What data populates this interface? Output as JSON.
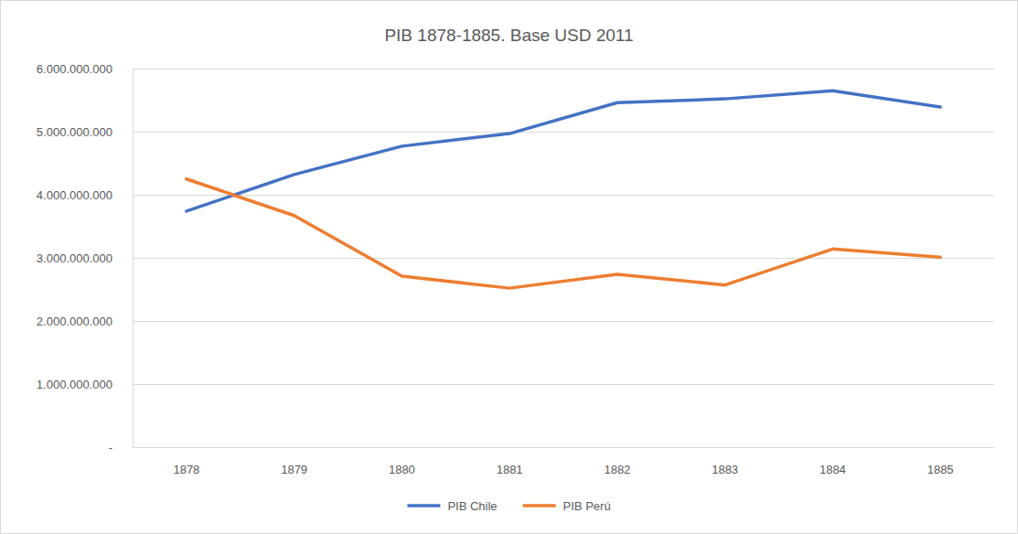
{
  "chart_data": {
    "type": "line",
    "title": "PIB 1878-1885. Base USD 2011",
    "categories": [
      "1878",
      "1879",
      "1880",
      "1881",
      "1882",
      "1883",
      "1884",
      "1885"
    ],
    "series": [
      {
        "name": "PIB Chile",
        "color": "#4472c4",
        "values": [
          3740000000,
          4320000000,
          4770000000,
          4970000000,
          5460000000,
          5520000000,
          5650000000,
          5390000000
        ]
      },
      {
        "name": "PIB Perú",
        "color": "#ed7d31",
        "values": [
          4250000000,
          3670000000,
          2710000000,
          2520000000,
          2740000000,
          2570000000,
          3140000000,
          3010000000
        ]
      }
    ],
    "ylim": [
      0,
      6000000000
    ],
    "yticks": [
      {
        "value": 0,
        "label": "-"
      },
      {
        "value": 1000000000,
        "label": "1.000.000.000"
      },
      {
        "value": 2000000000,
        "label": "2.000.000.000"
      },
      {
        "value": 3000000000,
        "label": "3.000.000.000"
      },
      {
        "value": 4000000000,
        "label": "4.000.000.000"
      },
      {
        "value": 5000000000,
        "label": "5.000.000.000"
      },
      {
        "value": 6000000000,
        "label": "6.000.000.000"
      }
    ],
    "grid": true,
    "legend": "bottom"
  }
}
